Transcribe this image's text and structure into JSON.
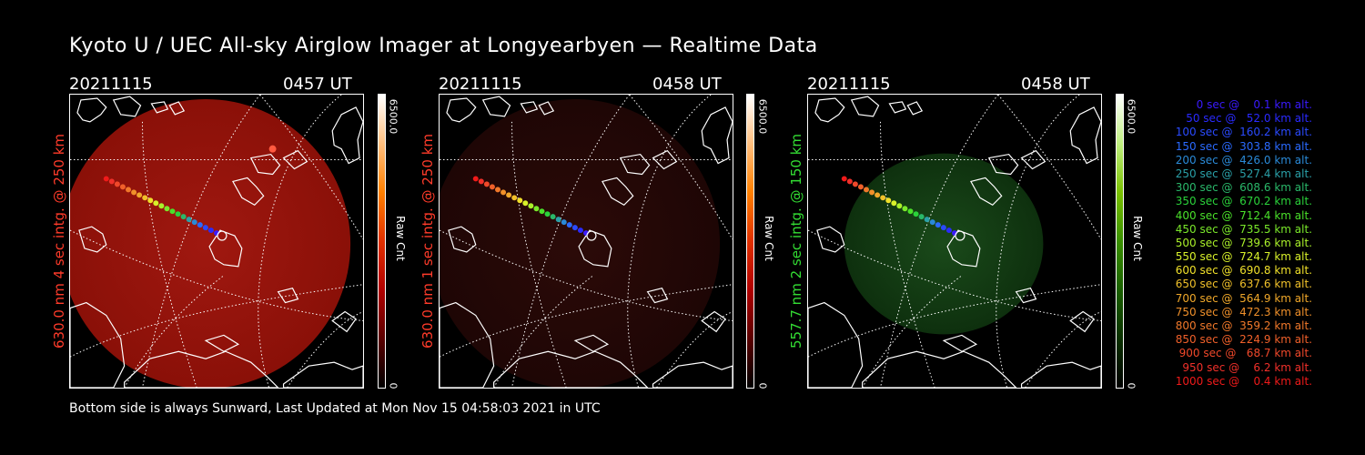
{
  "title": "Kyoto U / UEC All-sky Airglow Imager at Longyearbyen — Realtime Data",
  "footer": "Bottom side is always Sunward, Last Updated at Mon Nov 15 04:58:03 2021 in UTC",
  "panels": [
    {
      "date": "20211115",
      "time": "0457 UT",
      "ylabel": "630.0 nm 4 sec intg. @ 250 km",
      "ylabel_color": "#ff3b2a",
      "scale_max": "6500.0",
      "scale_min": "0",
      "scale_label": "Raw Cnt",
      "image_color": "red",
      "brightness": "high"
    },
    {
      "date": "20211115",
      "time": "0458 UT",
      "ylabel": "630.0 nm 1 sec intg. @ 250 km",
      "ylabel_color": "#ff3b2a",
      "scale_max": "6500.0",
      "scale_min": "0",
      "scale_label": "Raw Cnt",
      "image_color": "red",
      "brightness": "low"
    },
    {
      "date": "20211115",
      "time": "0458 UT",
      "ylabel": "557.7 nm 2 sec intg. @ 150 km",
      "ylabel_color": "#33dd33",
      "scale_max": "6500.0",
      "scale_min": "0",
      "scale_label": "Raw Cnt",
      "image_color": "green",
      "brightness": "low"
    }
  ],
  "legend": [
    {
      "text": "   0 sec @    0.1 km alt.",
      "color": "#3a1aff"
    },
    {
      "text": "  50 sec @   52.0 km alt.",
      "color": "#2a2aff"
    },
    {
      "text": " 100 sec @  160.2 km alt.",
      "color": "#2a4aff"
    },
    {
      "text": " 150 sec @  303.8 km alt.",
      "color": "#2a6aff"
    },
    {
      "text": " 200 sec @  426.0 km alt.",
      "color": "#2a8ad8"
    },
    {
      "text": " 250 sec @  527.4 km alt.",
      "color": "#2aa0a8"
    },
    {
      "text": " 300 sec @  608.6 km alt.",
      "color": "#2ab86a"
    },
    {
      "text": " 350 sec @  670.2 km alt.",
      "color": "#2ad23a"
    },
    {
      "text": " 400 sec @  712.4 km alt.",
      "color": "#4ae02a"
    },
    {
      "text": " 450 sec @  735.5 km alt.",
      "color": "#7ae82a"
    },
    {
      "text": " 500 sec @  739.6 km alt.",
      "color": "#aaf02a"
    },
    {
      "text": " 550 sec @  724.7 km alt.",
      "color": "#d8f02a"
    },
    {
      "text": " 600 sec @  690.8 km alt.",
      "color": "#f0e02a"
    },
    {
      "text": " 650 sec @  637.6 km alt.",
      "color": "#f0c02a"
    },
    {
      "text": " 700 sec @  564.9 km alt.",
      "color": "#f0a82a"
    },
    {
      "text": " 750 sec @  472.3 km alt.",
      "color": "#f0902a"
    },
    {
      "text": " 800 sec @  359.2 km alt.",
      "color": "#f0782a"
    },
    {
      "text": " 850 sec @  224.9 km alt.",
      "color": "#f0602a"
    },
    {
      "text": " 900 sec @   68.7 km alt.",
      "color": "#f0482a"
    },
    {
      "text": " 950 sec @    6.2 km alt.",
      "color": "#f0302a"
    },
    {
      "text": "1000 sec @    0.4 km alt.",
      "color": "#f01a1a"
    }
  ]
}
